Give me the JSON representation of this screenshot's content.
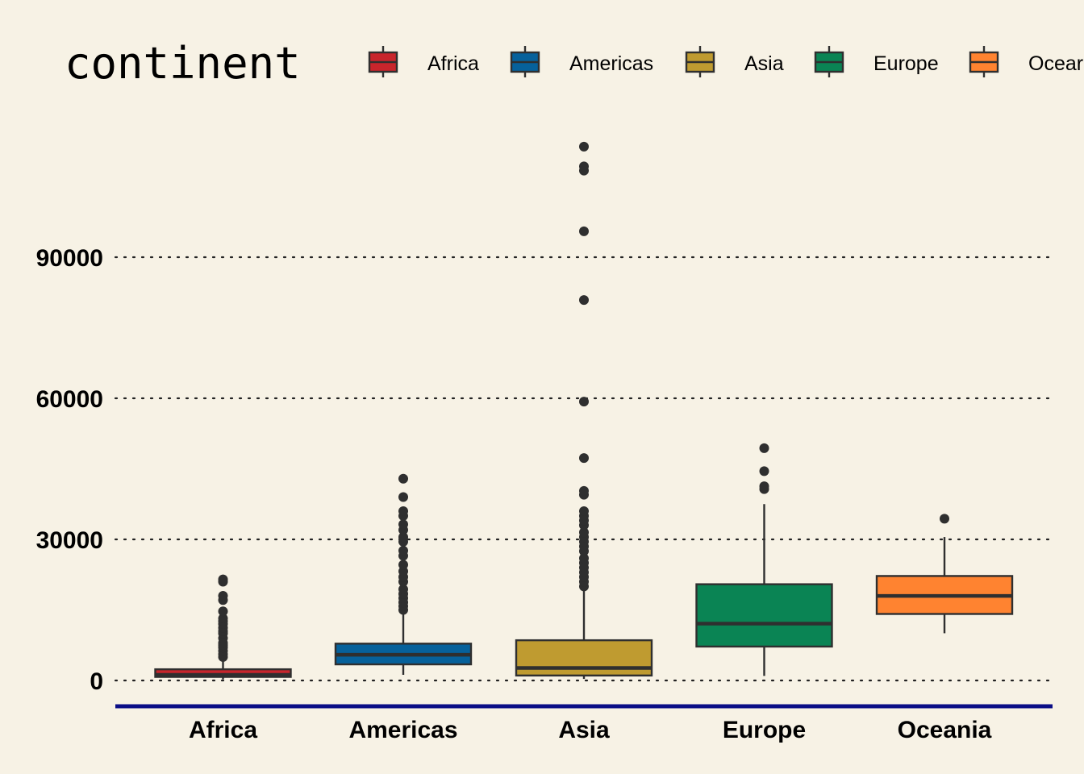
{
  "chart_data": {
    "type": "box",
    "legend_title": "continent",
    "legend_position": "top",
    "categories": [
      "Africa",
      "Americas",
      "Asia",
      "Europe",
      "Oceania"
    ],
    "legend_labels": [
      "Africa",
      "Americas",
      "Asia",
      "Europe",
      "Ocear"
    ],
    "y_ticks": [
      0,
      30000,
      60000,
      90000
    ],
    "y_tick_labels": [
      "0",
      "30000",
      "60000",
      "90000"
    ],
    "ylim": [
      -5000,
      118000
    ],
    "grid": "horizontal dotted",
    "colors": {
      "Africa": "#c8252c",
      "Americas": "#06619b",
      "Asia": "#bf9b30",
      "Europe": "#0a8454",
      "Oceania": "#ff8330",
      "background": "#f7f2e5",
      "axis_line": "#0b0e86",
      "box_edge": "#2f2f2f"
    },
    "boxes": [
      {
        "category": "Africa",
        "whisker_low": 241,
        "q1": 761,
        "median": 1192,
        "q3": 2377,
        "whisker_high": 4800,
        "outliers": [
          5000,
          5600,
          6300,
          7000,
          7500,
          8000,
          9000,
          10000,
          10500,
          11200,
          12000,
          12600,
          13200,
          14700,
          17100,
          18000,
          21000,
          21500
        ]
      },
      {
        "category": "Americas",
        "whisker_low": 1200,
        "q1": 3428,
        "median": 5466,
        "q3": 7830,
        "whisker_high": 14500,
        "outliers": [
          15000,
          15800,
          16600,
          17500,
          18400,
          19400,
          21000,
          22000,
          23200,
          24600,
          26500,
          27600,
          29500,
          30500,
          32000,
          33200,
          35000,
          36000,
          39000,
          42900
        ]
      },
      {
        "category": "Asia",
        "whisker_low": 331,
        "q1": 1057,
        "median": 2647,
        "q3": 8549,
        "whisker_high": 19500,
        "outliers": [
          20000,
          21000,
          22000,
          23000,
          24000,
          25000,
          26000,
          27500,
          28500,
          29500,
          30500,
          31500,
          33000,
          34000,
          35000,
          36000,
          39500,
          40300,
          47300,
          59300,
          80900,
          95500,
          108400,
          109300,
          113500
        ]
      },
      {
        "category": "Europe",
        "whisker_low": 974,
        "q1": 7213,
        "median": 12082,
        "q3": 20461,
        "whisker_high": 37500,
        "outliers": [
          40700,
          41300,
          44500,
          49400
        ]
      },
      {
        "category": "Oceania",
        "whisker_low": 10040,
        "q1": 14142,
        "median": 17983,
        "q3": 22214,
        "whisker_high": 30500,
        "outliers": [
          34400
        ]
      }
    ]
  }
}
